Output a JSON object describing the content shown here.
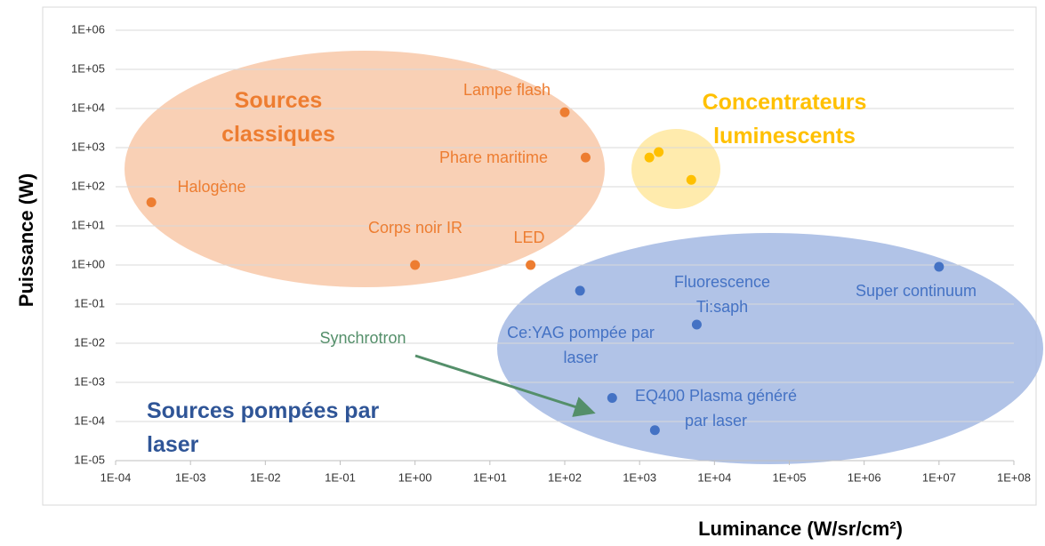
{
  "chart_data": {
    "type": "scatter",
    "xlog": true,
    "ylog": true,
    "grid": true,
    "xlabel": "Luminance (W/sr/cm²)",
    "ylabel": "Puissance (W)",
    "xlim": [
      0.0001,
      100000000
    ],
    "ylim": [
      1e-05,
      1000000
    ],
    "xticks": [
      {
        "value": 0.0001,
        "label": "1E-04"
      },
      {
        "value": 0.001,
        "label": "1E-03"
      },
      {
        "value": 0.01,
        "label": "1E-02"
      },
      {
        "value": 0.1,
        "label": "1E-01"
      },
      {
        "value": 1,
        "label": "1E+00"
      },
      {
        "value": 10,
        "label": "1E+01"
      },
      {
        "value": 100,
        "label": "1E+02"
      },
      {
        "value": 1000,
        "label": "1E+03"
      },
      {
        "value": 10000,
        "label": "1E+04"
      },
      {
        "value": 100000,
        "label": "1E+05"
      },
      {
        "value": 1000000,
        "label": "1E+06"
      },
      {
        "value": 10000000,
        "label": "1E+07"
      },
      {
        "value": 100000000,
        "label": "1E+08"
      }
    ],
    "yticks": [
      {
        "value": 1e-05,
        "label": "1E-05"
      },
      {
        "value": 0.0001,
        "label": "1E-04"
      },
      {
        "value": 0.001,
        "label": "1E-03"
      },
      {
        "value": 0.01,
        "label": "1E-02"
      },
      {
        "value": 0.1,
        "label": "1E-01"
      },
      {
        "value": 1,
        "label": "1E+00"
      },
      {
        "value": 10,
        "label": "1E+01"
      },
      {
        "value": 100,
        "label": "1E+02"
      },
      {
        "value": 1000,
        "label": "1E+03"
      },
      {
        "value": 10000,
        "label": "1E+04"
      },
      {
        "value": 100000,
        "label": "1E+05"
      },
      {
        "value": 1000000,
        "label": "1E+06"
      }
    ],
    "series": [
      {
        "name": "Sources classiques",
        "color": "#ed7d31",
        "x": [
          0.0003,
          1,
          35,
          100,
          190
        ],
        "values": [
          40,
          1,
          1,
          8000,
          560
        ]
      },
      {
        "name": "Concentrateurs luminescents",
        "color": "#ffc000",
        "x": [
          1350,
          1800,
          4900
        ],
        "values": [
          560,
          770,
          150
        ]
      },
      {
        "name": "Sources pompées par laser",
        "color": "#4472c4",
        "x": [
          160,
          5800,
          10000000,
          430,
          1600
        ],
        "values": [
          0.22,
          0.03,
          0.9,
          0.0004,
          6e-05
        ]
      }
    ],
    "annotations": [
      {
        "text": "Halogène",
        "color": "#ed7d31"
      },
      {
        "text": "Lampe flash",
        "color": "#ed7d31"
      },
      {
        "text": "Phare maritime",
        "color": "#ed7d31"
      },
      {
        "text": "Corps noir IR",
        "color": "#ed7d31"
      },
      {
        "text": "LED",
        "color": "#ed7d31"
      },
      {
        "text": "Fluorescence Ti:saph",
        "color": "#4472c4"
      },
      {
        "text": "Super continuum",
        "color": "#4472c4"
      },
      {
        "text": "Ce:YAG pompée par laser",
        "color": "#4472c4"
      },
      {
        "text": "Synchrotron",
        "color": "#548f6a"
      },
      {
        "text": "EQ400 Plasma généré par laser",
        "color": "#4472c4"
      }
    ]
  }
}
